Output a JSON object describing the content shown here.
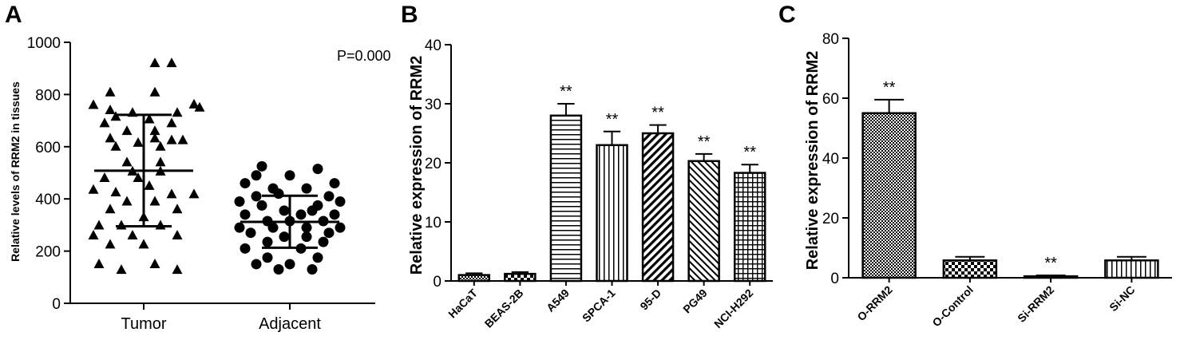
{
  "panels": {
    "a": "A",
    "b": "B",
    "c": "C"
  },
  "chart_data": [
    {
      "type": "scatter",
      "ylabel": "Relative levels of RRM2 in tissues",
      "annotation": "P=0.000",
      "ylim": [
        0,
        1000
      ],
      "yticks": [
        "0",
        "200",
        "400",
        "600",
        "800",
        "1000"
      ],
      "categories": [
        "Tumor",
        "Adjacent"
      ],
      "series": [
        {
          "category": "Tumor",
          "marker": "triangle",
          "mean": 508,
          "sd_low": 295,
          "sd_high": 722,
          "points": [
            [
              0.2,
              920
            ],
            [
              0.5,
              920
            ],
            [
              -0.6,
              808
            ],
            [
              0.2,
              808
            ],
            [
              -0.9,
              760
            ],
            [
              -0.6,
              740
            ],
            [
              -0.2,
              730
            ],
            [
              0.6,
              730
            ],
            [
              0.9,
              762
            ],
            [
              1.0,
              750
            ],
            [
              -0.5,
              715
            ],
            [
              0.1,
              705
            ],
            [
              -0.7,
              690
            ],
            [
              0.5,
              690
            ],
            [
              -0.3,
              660
            ],
            [
              0.2,
              660
            ],
            [
              -0.6,
              632
            ],
            [
              0.2,
              632
            ],
            [
              -0.1,
              615
            ],
            [
              0.5,
              625
            ],
            [
              0.7,
              625
            ],
            [
              -0.5,
              600
            ],
            [
              0.3,
              600
            ],
            [
              -0.3,
              540
            ],
            [
              0.3,
              540
            ],
            [
              -0.2,
              505
            ],
            [
              0.3,
              505
            ],
            [
              -0.7,
              480
            ],
            [
              -0.1,
              480
            ],
            [
              -0.9,
              435
            ],
            [
              -0.5,
              425
            ],
            [
              0.1,
              450
            ],
            [
              0.5,
              418
            ],
            [
              0.9,
              418
            ],
            [
              -0.3,
              390
            ],
            [
              0.2,
              390
            ],
            [
              -0.6,
              360
            ],
            [
              0.6,
              360
            ],
            [
              0.0,
              330
            ],
            [
              -0.8,
              298
            ],
            [
              -0.4,
              298
            ],
            [
              0.3,
              298
            ],
            [
              -0.2,
              260
            ],
            [
              -0.9,
              260
            ],
            [
              0.6,
              260
            ],
            [
              -0.6,
              225
            ],
            [
              0.0,
              225
            ],
            [
              -0.8,
              150
            ],
            [
              0.2,
              150
            ],
            [
              -0.4,
              128
            ],
            [
              0.6,
              128
            ]
          ]
        },
        {
          "category": "Adjacent",
          "marker": "circle",
          "mean": 312,
          "sd_low": 213,
          "sd_high": 412,
          "points": [
            [
              -0.5,
              525
            ],
            [
              0.5,
              515
            ],
            [
              -0.6,
              490
            ],
            [
              0.0,
              490
            ],
            [
              -0.8,
              460
            ],
            [
              0.8,
              460
            ],
            [
              -0.3,
              440
            ],
            [
              0.3,
              440
            ],
            [
              -0.2,
              420
            ],
            [
              -0.6,
              410
            ],
            [
              0.7,
              410
            ],
            [
              -0.9,
              390
            ],
            [
              0.9,
              390
            ],
            [
              -0.5,
              375
            ],
            [
              0.5,
              375
            ],
            [
              -0.1,
              355
            ],
            [
              0.4,
              355
            ],
            [
              -0.8,
              340
            ],
            [
              0.2,
              340
            ],
            [
              0.8,
              340
            ],
            [
              -0.4,
              315
            ],
            [
              0.0,
              315
            ],
            [
              0.6,
              315
            ],
            [
              -0.9,
              290
            ],
            [
              -0.3,
              290
            ],
            [
              0.3,
              290
            ],
            [
              0.9,
              290
            ],
            [
              -0.7,
              270
            ],
            [
              0.7,
              270
            ],
            [
              -0.1,
              255
            ],
            [
              0.3,
              255
            ],
            [
              -0.4,
              235
            ],
            [
              0.6,
              235
            ],
            [
              -0.8,
              210
            ],
            [
              0.2,
              210
            ],
            [
              -0.4,
              175
            ],
            [
              0.5,
              175
            ],
            [
              -0.6,
              150
            ],
            [
              0.0,
              150
            ],
            [
              -0.2,
              130
            ],
            [
              0.4,
              130
            ]
          ]
        }
      ]
    },
    {
      "type": "bar",
      "ylabel": "Relative expression of RRM2",
      "ylim": [
        0,
        40
      ],
      "yticks": [
        "0",
        "10",
        "20",
        "30",
        "40"
      ],
      "categories": [
        "HaCaT",
        "BEAS-2B",
        "A549",
        "SPCA-1",
        "95-D",
        "PG49",
        "NCI-H292"
      ],
      "values": [
        1.0,
        1.2,
        28,
        23,
        25,
        20.3,
        18.3
      ],
      "errors": [
        0.3,
        0.3,
        2.0,
        2.3,
        1.4,
        1.2,
        1.4
      ],
      "significance": [
        "",
        "",
        "**",
        "**",
        "**",
        "**",
        "**"
      ],
      "patterns": [
        "checker-small",
        "checker",
        "hlines",
        "vlines",
        "diag-right-thick",
        "diag-right",
        "grid"
      ]
    },
    {
      "type": "bar",
      "ylabel": "Relative expression of RRM2",
      "ylim": [
        0,
        80
      ],
      "yticks": [
        "0",
        "20",
        "40",
        "60",
        "80"
      ],
      "categories": [
        "O-RRM2",
        "O-Control",
        "Si-RRM2",
        "Si-NC"
      ],
      "values": [
        55,
        5.8,
        0.5,
        5.8
      ],
      "errors": [
        4.5,
        1.2,
        0.3,
        1.2
      ],
      "significance": [
        "**",
        "",
        "**",
        ""
      ],
      "patterns": [
        "checker-small",
        "checker",
        "checker-small",
        "vlines"
      ]
    }
  ]
}
